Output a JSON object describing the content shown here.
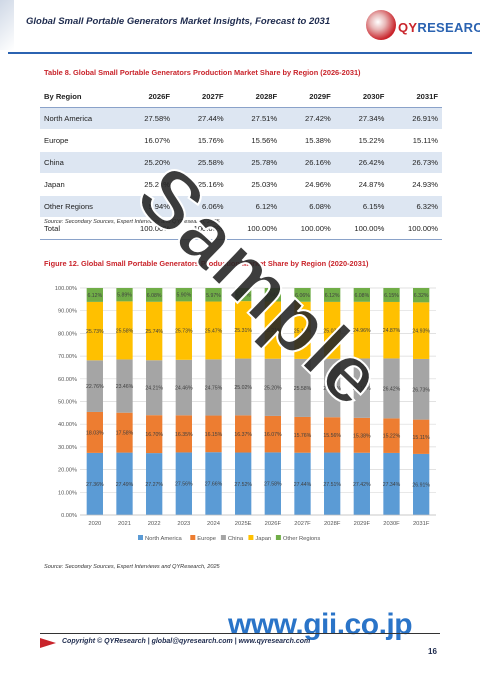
{
  "header": {
    "title": "Global Small Portable Generators Market Insights, Forecast to 2031",
    "logo_text_a": "QY",
    "logo_text_b": "RESEARCH"
  },
  "table": {
    "caption": "Table 8.   Global Small Portable Generators Production Market Share by Region (2026-2031)",
    "columns": [
      "By Region",
      "2026F",
      "2027F",
      "2028F",
      "2029F",
      "2030F",
      "2031F"
    ],
    "rows": [
      [
        "North America",
        "27.58%",
        "27.44%",
        "27.51%",
        "27.42%",
        "27.34%",
        "26.91%"
      ],
      [
        "Europe",
        "16.07%",
        "15.76%",
        "15.56%",
        "15.38%",
        "15.22%",
        "15.11%"
      ],
      [
        "China",
        "25.20%",
        "25.58%",
        "25.78%",
        "26.16%",
        "26.42%",
        "26.73%"
      ],
      [
        "Japan",
        "25.21%",
        "25.16%",
        "25.03%",
        "24.96%",
        "24.87%",
        "24.93%"
      ],
      [
        "Other Regions",
        "5.94%",
        "6.06%",
        "6.12%",
        "6.08%",
        "6.15%",
        "6.32%"
      ],
      [
        "Total",
        "100.00%",
        "100.00%",
        "100.00%",
        "100.00%",
        "100.00%",
        "100.00%"
      ]
    ],
    "source": "Source: Secondary Sources, Expert Interviews and QYResearch, 2025"
  },
  "figure": {
    "caption": "Figure 12.   Global Small Portable Generators Production Market Share by Region (2020-2031)",
    "source": "Source: Secondary Sources, Expert Interviews and QYResearch, 2025"
  },
  "chart_data": {
    "type": "bar",
    "stacked": true,
    "percent": true,
    "categories": [
      "2020",
      "2021",
      "2022",
      "2023",
      "2024",
      "2025E",
      "2026F",
      "2027F",
      "2028F",
      "2029F",
      "2030F",
      "2031F"
    ],
    "ylim": [
      0,
      100
    ],
    "yticks": [
      "0.00%",
      "10.00%",
      "20.00%",
      "30.00%",
      "40.00%",
      "50.00%",
      "60.00%",
      "70.00%",
      "80.00%",
      "90.00%",
      "100.00%"
    ],
    "grid": true,
    "legend_position": "bottom",
    "series": [
      {
        "name": "North America",
        "color": "#5b9bd5",
        "values": [
          27.36,
          27.49,
          27.27,
          27.56,
          27.66,
          27.52,
          27.58,
          27.44,
          27.51,
          27.42,
          27.34,
          26.91
        ],
        "labels": [
          "27.36%",
          "27.49%",
          "27.27%",
          "27.56%",
          "27.66%",
          "27.52%",
          "27.58%",
          "27.44%",
          "27.51%",
          "27.42%",
          "27.34%",
          "26.91%"
        ]
      },
      {
        "name": "Europe",
        "color": "#ed7d31",
        "values": [
          18.03,
          17.58,
          16.7,
          16.35,
          16.15,
          16.37,
          16.07,
          15.76,
          15.56,
          15.38,
          15.22,
          15.11
        ],
        "labels": [
          "18.03%",
          "17.58%",
          "16.70%",
          "16.35%",
          "16.15%",
          "16.37%",
          "16.07%",
          "15.76%",
          "15.56%",
          "15.38%",
          "15.22%",
          "15.11%"
        ]
      },
      {
        "name": "China",
        "color": "#a5a5a5",
        "values": [
          22.76,
          23.46,
          24.21,
          24.46,
          24.75,
          25.02,
          25.2,
          25.58,
          25.78,
          26.16,
          26.42,
          26.73
        ],
        "labels": [
          "22.76%",
          "23.46%",
          "24.21%",
          "24.46%",
          "24.75%",
          "25.02%",
          "25.20%",
          "25.58%",
          "25.78%",
          "26.16%",
          "26.42%",
          "26.73%"
        ]
      },
      {
        "name": "Japan",
        "color": "#ffc000",
        "values": [
          25.73,
          25.58,
          25.74,
          25.73,
          25.47,
          25.31,
          25.21,
          25.16,
          25.03,
          24.96,
          24.87,
          24.93
        ],
        "labels": [
          "25.73%",
          "25.58%",
          "25.74%",
          "25.73%",
          "25.47%",
          "25.31%",
          "25.21%",
          "25.16%",
          "25.03%",
          "24.96%",
          "24.87%",
          "24.93%"
        ]
      },
      {
        "name": "Other Regions",
        "color": "#70ad47",
        "values": [
          6.12,
          5.89,
          6.08,
          5.9,
          5.97,
          5.78,
          5.94,
          6.06,
          6.12,
          6.08,
          6.15,
          6.32
        ],
        "labels": [
          "6.12%",
          "5.89%",
          "6.08%",
          "5.90%",
          "5.97%",
          "5.78%",
          "5.94%",
          "6.06%",
          "6.12%",
          "6.08%",
          "6.15%",
          "6.32%"
        ]
      }
    ]
  },
  "watermark": {
    "text": "Sample"
  },
  "footer": {
    "text": "Copyright © QYResearch | global@qyresearch.com | www.qyresearch.com",
    "page_number": "16",
    "gii_text": "www.gii.co.jp"
  }
}
